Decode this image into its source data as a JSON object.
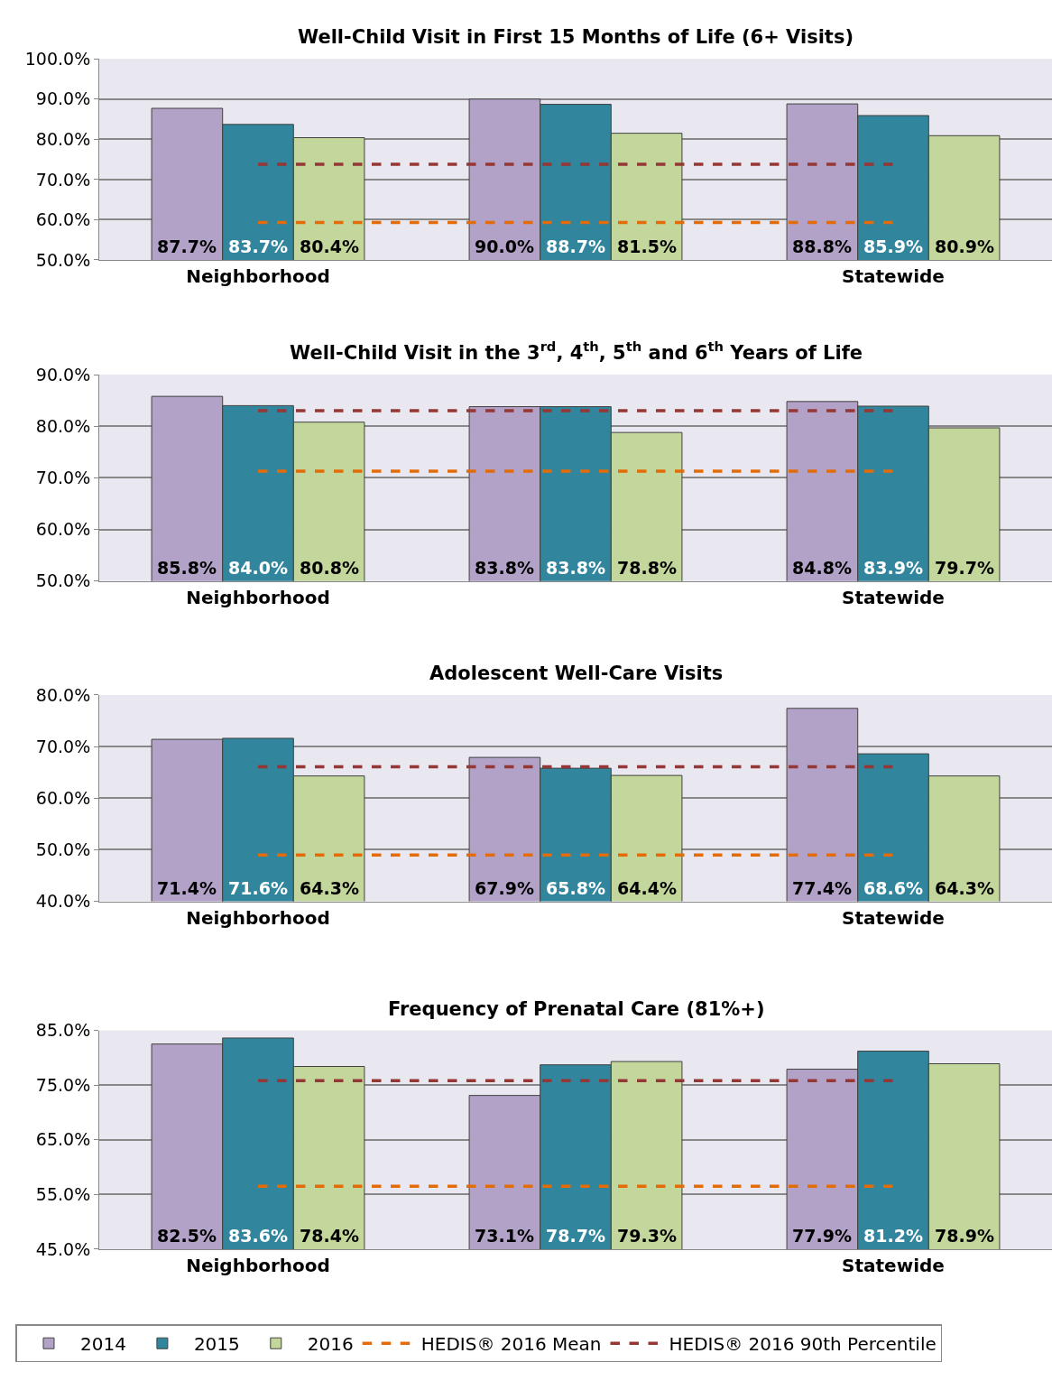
{
  "chart_data": [
    {
      "type": "bar",
      "title": "Well-Child Visit in First 15 Months of Life (6+ Visits)",
      "categories": [
        "Neighborhood",
        null,
        "Statewide"
      ],
      "grid": "y",
      "legend": "bottom",
      "ylim": [
        50,
        100
      ],
      "yticks": [
        {
          "value": 50,
          "label": "50.0%"
        },
        {
          "value": 60,
          "label": "60.0%"
        },
        {
          "value": 70,
          "label": "70.0%"
        },
        {
          "value": 80,
          "label": "80.0%"
        },
        {
          "value": 90,
          "label": "90.0%"
        },
        {
          "value": 100,
          "label": "100.0%"
        }
      ],
      "series": [
        {
          "name": "2014",
          "color": "#b3a2c7",
          "values": [
            87.7,
            90.0,
            88.8
          ],
          "value_labels": [
            "87.7%",
            "90.0%",
            "88.8%"
          ]
        },
        {
          "name": "2015",
          "color": "#31859c",
          "values": [
            83.7,
            88.7,
            85.9
          ],
          "value_labels": [
            "83.7%",
            "88.7%",
            "85.9%"
          ]
        },
        {
          "name": "2016",
          "color": "#c3d69b",
          "values": [
            80.4,
            81.5,
            80.9
          ],
          "value_labels": [
            "80.4%",
            "81.5%",
            "80.9%"
          ]
        }
      ],
      "ref_lines": [
        {
          "axis": "y",
          "value": 59.3,
          "label": "HEDIS® 2016 Mean",
          "color": "#e36c09",
          "line_style": "dashed"
        },
        {
          "axis": "y",
          "value": 73.8,
          "label": "HEDIS® 2016 90th Percentile",
          "color": "#953735",
          "line_style": "dashed"
        }
      ]
    },
    {
      "type": "bar",
      "title": "Well-Child Visit in the 3$^{rd}$, 4$^{th}$, 5$^{th}$ and 6$^{th}$ Years of Life",
      "categories": [
        "Neighborhood",
        null,
        "Statewide"
      ],
      "grid": "y",
      "ylim": [
        50,
        90
      ],
      "yticks": [
        {
          "value": 50,
          "label": "50.0%"
        },
        {
          "value": 60,
          "label": "60.0%"
        },
        {
          "value": 70,
          "label": "70.0%"
        },
        {
          "value": 80,
          "label": "80.0%"
        },
        {
          "value": 90,
          "label": "90.0%"
        }
      ],
      "series": [
        {
          "name": "2014",
          "color": "#b3a2c7",
          "values": [
            85.8,
            83.8,
            84.8
          ],
          "value_labels": [
            "85.8%",
            "83.8%",
            "84.8%"
          ]
        },
        {
          "name": "2015",
          "color": "#31859c",
          "values": [
            84.0,
            83.8,
            83.9
          ],
          "value_labels": [
            "84.0%",
            "83.8%",
            "83.9%"
          ]
        },
        {
          "name": "2016",
          "color": "#c3d69b",
          "values": [
            80.8,
            78.8,
            79.7
          ],
          "value_labels": [
            "80.8%",
            "78.8%",
            "79.7%"
          ]
        }
      ],
      "ref_lines": [
        {
          "axis": "y",
          "value": 71.3,
          "color": "#e36c09",
          "line_style": "dashed"
        },
        {
          "axis": "y",
          "value": 83.0,
          "color": "#953735",
          "line_style": "dashed"
        }
      ]
    },
    {
      "type": "bar",
      "title": "Adolescent Well-Care Visits",
      "categories": [
        "Neighborhood",
        null,
        "Statewide"
      ],
      "grid": "y",
      "ylim": [
        40,
        80
      ],
      "yticks": [
        {
          "value": 40,
          "label": "40.0%"
        },
        {
          "value": 50,
          "label": "50.0%"
        },
        {
          "value": 60,
          "label": "60.0%"
        },
        {
          "value": 70,
          "label": "70.0%"
        },
        {
          "value": 80,
          "label": "80.0%"
        }
      ],
      "series": [
        {
          "name": "2014",
          "color": "#b3a2c7",
          "values": [
            71.4,
            67.9,
            77.4
          ],
          "value_labels": [
            "71.4%",
            "67.9%",
            "77.4%"
          ]
        },
        {
          "name": "2015",
          "color": "#31859c",
          "values": [
            71.6,
            65.8,
            68.6
          ],
          "value_labels": [
            "71.6%",
            "65.8%",
            "68.6%"
          ]
        },
        {
          "name": "2016",
          "color": "#c3d69b",
          "values": [
            64.3,
            64.4,
            64.3
          ],
          "value_labels": [
            "64.3%",
            "64.4%",
            "64.3%"
          ]
        }
      ],
      "ref_lines": [
        {
          "axis": "y",
          "value": 49.0,
          "color": "#e36c09",
          "line_style": "dashed"
        },
        {
          "axis": "y",
          "value": 66.1,
          "color": "#953735",
          "line_style": "dashed"
        }
      ]
    },
    {
      "type": "bar",
      "title": "Frequency of Prenatal Care (81%+)",
      "categories": [
        "Neighborhood",
        null,
        "Statewide"
      ],
      "grid": "y",
      "ylim": [
        45,
        85
      ],
      "yticks": [
        {
          "value": 45,
          "label": "45.0%"
        },
        {
          "value": 55,
          "label": "55.0%"
        },
        {
          "value": 65,
          "label": "65.0%"
        },
        {
          "value": 75,
          "label": "75.0%"
        },
        {
          "value": 85,
          "label": "85.0%"
        }
      ],
      "series": [
        {
          "name": "2014",
          "color": "#b3a2c7",
          "values": [
            82.5,
            73.1,
            77.9
          ],
          "value_labels": [
            "82.5%",
            "73.1%",
            "77.9%"
          ]
        },
        {
          "name": "2015",
          "color": "#31859c",
          "values": [
            83.6,
            78.7,
            81.2
          ],
          "value_labels": [
            "83.6%",
            "78.7%",
            "81.2%"
          ]
        },
        {
          "name": "2016",
          "color": "#c3d69b",
          "values": [
            78.4,
            79.3,
            78.9
          ],
          "value_labels": [
            "78.4%",
            "79.3%",
            "78.9%"
          ]
        }
      ],
      "ref_lines": [
        {
          "axis": "y",
          "value": 56.5,
          "color": "#e36c09",
          "line_style": "dashed"
        },
        {
          "axis": "y",
          "value": 75.8,
          "color": "#953735",
          "line_style": "dashed"
        }
      ]
    }
  ]
}
